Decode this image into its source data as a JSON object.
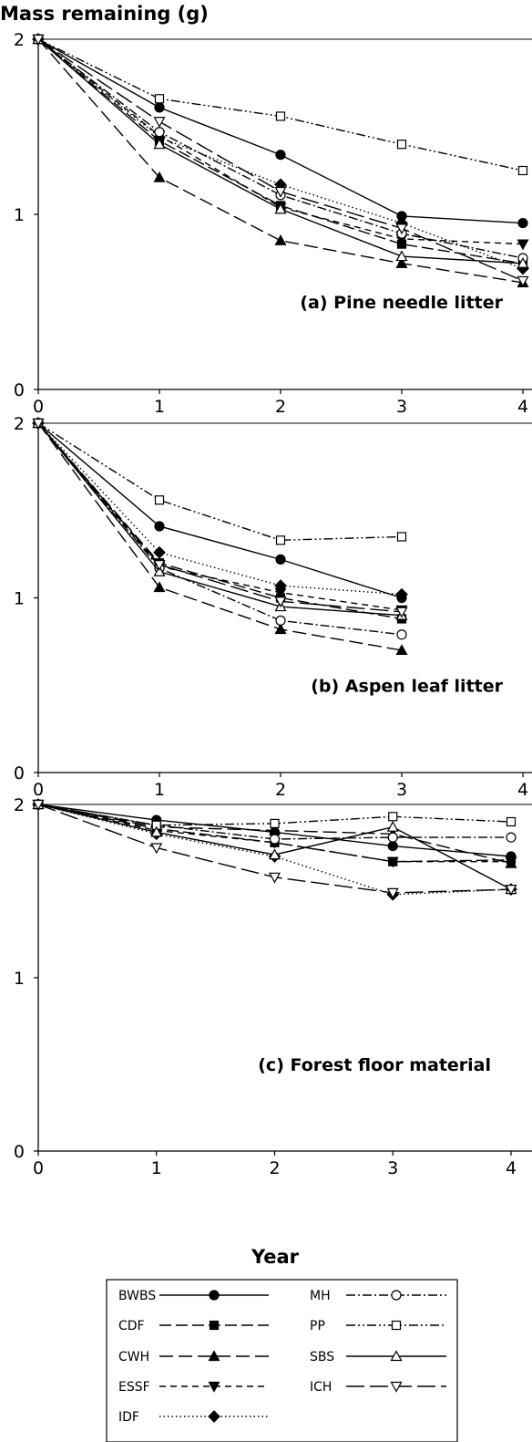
{
  "title": "Mass remaining (g)",
  "xlabel": "Year",
  "chart_data": [
    {
      "type": "line",
      "panel_title": "(a) Pine needle litter",
      "x": [
        0,
        1,
        2,
        3,
        4
      ],
      "xlim": [
        0,
        4
      ],
      "ylim": [
        0,
        2
      ],
      "x_ticks": [
        "0",
        "1",
        "2",
        "3",
        "4"
      ],
      "y_ticks": [
        "0",
        "1",
        "2"
      ],
      "series": [
        {
          "name": "BWBS",
          "x": [
            0,
            1,
            2,
            3,
            4
          ],
          "values": [
            2.0,
            1.61,
            1.34,
            0.99,
            0.95
          ]
        },
        {
          "name": "CDF",
          "x": [
            0,
            1,
            2,
            3,
            4
          ],
          "values": [
            2.0,
            1.42,
            1.05,
            0.83,
            0.72
          ]
        },
        {
          "name": "CWH",
          "x": [
            0,
            1,
            2,
            3,
            4
          ],
          "values": [
            2.0,
            1.21,
            0.85,
            0.72,
            0.61
          ]
        },
        {
          "name": "ESSF",
          "x": [
            0,
            1,
            2,
            3,
            4
          ],
          "values": [
            2.0,
            1.45,
            1.04,
            0.86,
            0.83
          ]
        },
        {
          "name": "IDF",
          "x": [
            0,
            1,
            2,
            3,
            4
          ],
          "values": [
            2.0,
            1.44,
            1.17,
            0.95,
            0.69
          ]
        },
        {
          "name": "MH",
          "x": [
            0,
            1,
            2,
            3,
            4
          ],
          "values": [
            2.0,
            1.47,
            1.11,
            0.89,
            0.75
          ]
        },
        {
          "name": "PP",
          "x": [
            0,
            1,
            2,
            3,
            4
          ],
          "values": [
            2.0,
            1.66,
            1.56,
            1.4,
            1.25
          ]
        },
        {
          "name": "SBS",
          "x": [
            0,
            1,
            2,
            3,
            4
          ],
          "values": [
            2.0,
            1.4,
            1.03,
            0.76,
            0.72
          ]
        },
        {
          "name": "ICH",
          "x": [
            0,
            1,
            2,
            3,
            4
          ],
          "values": [
            2.0,
            1.53,
            1.13,
            0.92,
            0.62
          ]
        }
      ]
    },
    {
      "type": "line",
      "panel_title": "(b) Aspen leaf litter",
      "x": [
        0,
        1,
        2,
        3
      ],
      "xlim": [
        0,
        4
      ],
      "ylim": [
        0,
        2
      ],
      "x_ticks": [
        "0",
        "1",
        "2",
        "3",
        "4"
      ],
      "y_ticks": [
        "0",
        "1",
        "2"
      ],
      "series": [
        {
          "name": "BWBS",
          "x": [
            0,
            1,
            2,
            3
          ],
          "values": [
            2.0,
            1.41,
            1.22,
            1.0
          ]
        },
        {
          "name": "CDF",
          "x": [
            0,
            1,
            2,
            3
          ],
          "values": [
            2.0,
            1.2,
            1.0,
            0.88
          ]
        },
        {
          "name": "CWH",
          "x": [
            0,
            1,
            2,
            3
          ],
          "values": [
            2.0,
            1.06,
            0.82,
            0.7
          ]
        },
        {
          "name": "ESSF",
          "x": [
            0,
            1,
            2,
            3
          ],
          "values": [
            2.0,
            1.18,
            1.03,
            0.93
          ]
        },
        {
          "name": "IDF",
          "x": [
            0,
            1,
            2,
            3
          ],
          "values": [
            2.0,
            1.26,
            1.07,
            1.02
          ]
        },
        {
          "name": "MH",
          "x": [
            0,
            1,
            2,
            3
          ],
          "values": [
            2.0,
            1.17,
            0.87,
            0.79
          ]
        },
        {
          "name": "PP",
          "x": [
            0,
            1,
            2,
            3
          ],
          "values": [
            2.0,
            1.56,
            1.33,
            1.35
          ]
        },
        {
          "name": "SBS",
          "x": [
            0,
            1,
            2,
            3
          ],
          "values": [
            2.0,
            1.15,
            0.95,
            0.9
          ]
        },
        {
          "name": "ICH",
          "x": [
            0,
            1,
            2,
            3
          ],
          "values": [
            2.0,
            1.19,
            0.98,
            0.92
          ]
        }
      ]
    },
    {
      "type": "line",
      "panel_title": "(c) Forest floor material",
      "x": [
        0,
        1,
        2,
        3,
        4
      ],
      "xlim": [
        0,
        4
      ],
      "ylim": [
        0,
        2
      ],
      "x_ticks": [
        "0",
        "1",
        "2",
        "3",
        "4"
      ],
      "y_ticks": [
        "0",
        "1",
        "2"
      ],
      "series": [
        {
          "name": "BWBS",
          "x": [
            0,
            1,
            2,
            3,
            4
          ],
          "values": [
            2.0,
            1.91,
            1.84,
            1.76,
            1.7
          ]
        },
        {
          "name": "CDF",
          "x": [
            0,
            1,
            2,
            3,
            4
          ],
          "values": [
            2.0,
            1.86,
            1.78,
            1.67,
            1.68
          ]
        },
        {
          "name": "CWH",
          "x": [
            0,
            1,
            2,
            3,
            4
          ],
          "values": [
            2.0,
            1.87,
            1.85,
            1.83,
            1.66
          ]
        },
        {
          "name": "ESSF",
          "x": [
            0,
            1,
            2,
            3,
            4
          ],
          "values": [
            2.0,
            1.85,
            1.78,
            1.67,
            1.67
          ]
        },
        {
          "name": "IDF",
          "x": [
            0,
            1,
            2,
            3,
            4
          ],
          "values": [
            2.0,
            1.83,
            1.7,
            1.48,
            1.51
          ]
        },
        {
          "name": "MH",
          "x": [
            0,
            1,
            2,
            3,
            4
          ],
          "values": [
            2.0,
            1.88,
            1.8,
            1.81,
            1.81
          ]
        },
        {
          "name": "PP",
          "x": [
            0,
            1,
            2,
            3,
            4
          ],
          "values": [
            2.0,
            1.88,
            1.89,
            1.93,
            1.9
          ]
        },
        {
          "name": "SBS",
          "x": [
            0,
            1,
            2,
            3,
            4
          ],
          "values": [
            2.0,
            1.84,
            1.71,
            1.87,
            1.51
          ]
        },
        {
          "name": "ICH",
          "x": [
            0,
            1,
            2,
            3,
            4
          ],
          "values": [
            2.0,
            1.75,
            1.58,
            1.49,
            1.51
          ]
        }
      ]
    }
  ],
  "legend": [
    {
      "name": "BWBS",
      "dash": "",
      "marker": "circle",
      "fill": "#000000"
    },
    {
      "name": "CDF",
      "dash": "13 5",
      "marker": "square",
      "fill": "#000000"
    },
    {
      "name": "CWH",
      "dash": "15 6",
      "marker": "triangle-up",
      "fill": "#000000"
    },
    {
      "name": "ESSF",
      "dash": "7 5",
      "marker": "triangle-down",
      "fill": "#000000"
    },
    {
      "name": "IDF",
      "dash": "1.5 3",
      "marker": "diamond",
      "fill": "#000000"
    },
    {
      "name": "MH",
      "dash": "10 3 2 3",
      "marker": "circle",
      "fill": "#ffffff"
    },
    {
      "name": "PP",
      "dash": "10 3 2 3 2 3",
      "marker": "square",
      "fill": "#ffffff"
    },
    {
      "name": "SBS",
      "dash": "",
      "marker": "triangle-up",
      "fill": "#ffffff"
    },
    {
      "name": "ICH",
      "dash": "20 6",
      "marker": "triangle-down",
      "fill": "#ffffff"
    }
  ]
}
